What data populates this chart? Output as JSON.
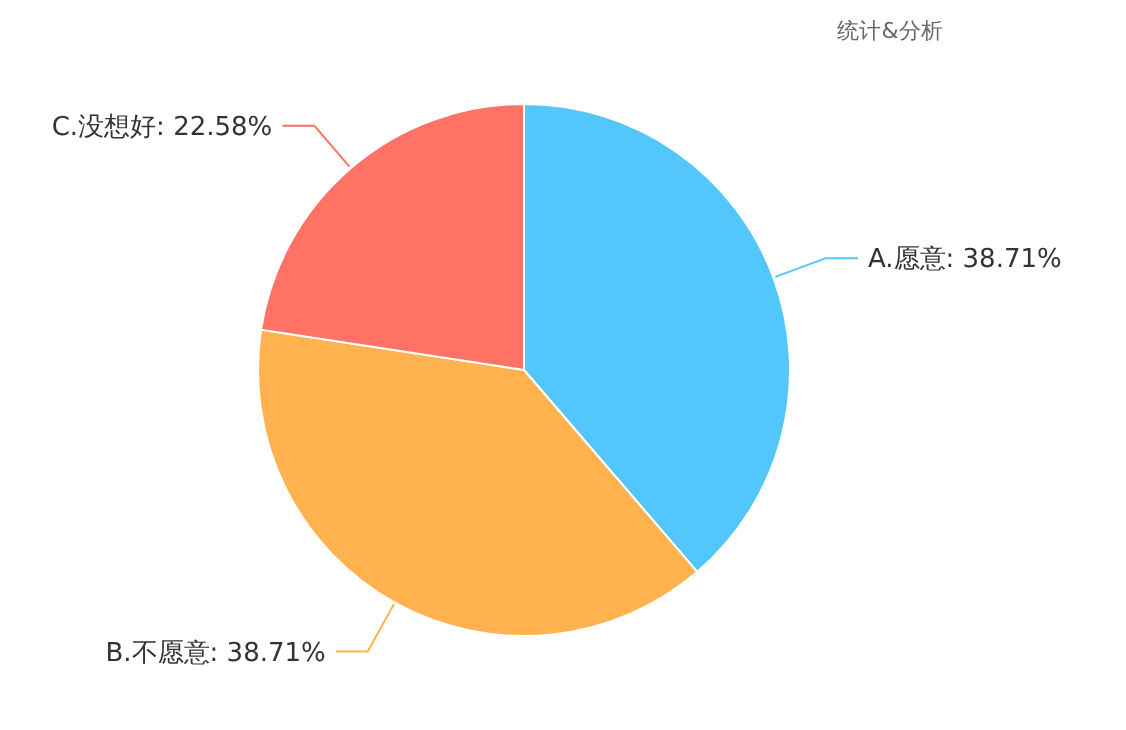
{
  "chart_data": {
    "type": "pie",
    "title": "统计&分析",
    "categories": [
      "A.愿意",
      "B.不愿意",
      "C.没想好"
    ],
    "values": [
      38.71,
      38.71,
      22.58
    ],
    "value_labels": [
      "38.71%",
      "38.71%",
      "22.58%"
    ],
    "colors": [
      "#53c6fb",
      "#ffb24d",
      "#ff7264"
    ]
  }
}
